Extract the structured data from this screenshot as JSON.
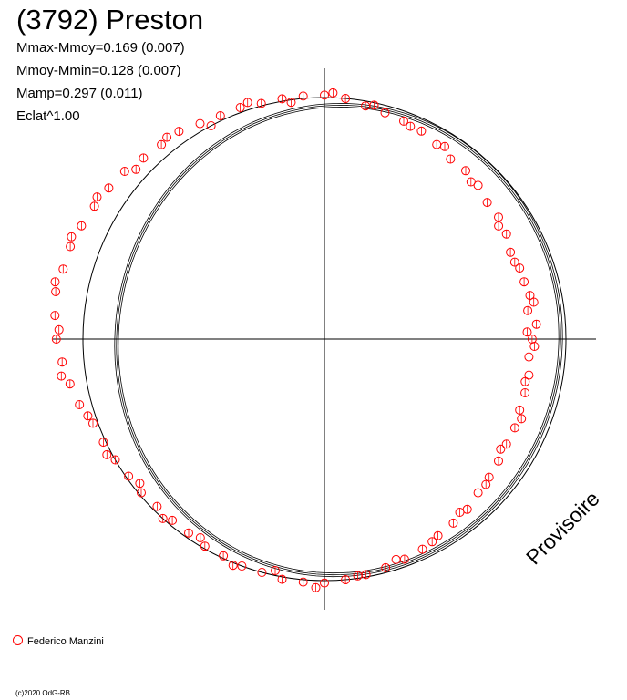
{
  "header": {
    "title": "(3792) Preston",
    "stats": [
      "Mmax-Mmoy=0.169 (0.007)",
      "Mmoy-Mmin=0.128 (0.007)",
      "Mamp=0.297 (0.011)",
      "Eclat^1.00"
    ]
  },
  "watermark": "Provisoire",
  "legend": {
    "label": "Federico Manzini",
    "marker_color": "#ff0000"
  },
  "copyright": "(c)2020 OdG-RB",
  "chart_data": {
    "type": "scatter",
    "projection": "polar",
    "theta_unit": "degrees, counter-clockwise from +x axis",
    "r_unit": "relative radius (1.0 = reference circle)",
    "reference_circle_radius": 1.0,
    "grid": false,
    "axes": "crosshair through center",
    "legend_position": "bottom-left",
    "series": [
      {
        "name": "Federico Manzini",
        "marker": "open circle",
        "color": "#ff0000",
        "points": [
          [
            0,
            0.86
          ],
          [
            4,
            0.88
          ],
          [
            8,
            0.85
          ],
          [
            12,
            0.87
          ],
          [
            16,
            0.86
          ],
          [
            20,
            0.86
          ],
          [
            25,
            0.85
          ],
          [
            30,
            0.87
          ],
          [
            35,
            0.88
          ],
          [
            40,
            0.88
          ],
          [
            45,
            0.9
          ],
          [
            50,
            0.91
          ],
          [
            55,
            0.91
          ],
          [
            60,
            0.93
          ],
          [
            65,
            0.95
          ],
          [
            70,
            0.96
          ],
          [
            75,
            0.97
          ],
          [
            80,
            0.98
          ],
          [
            85,
            1.0
          ],
          [
            90,
            1.01
          ],
          [
            95,
            1.01
          ],
          [
            100,
            1.01
          ],
          [
            105,
            1.01
          ],
          [
            110,
            1.02
          ],
          [
            115,
            1.02
          ],
          [
            120,
            1.03
          ],
          [
            125,
            1.05
          ],
          [
            130,
            1.05
          ],
          [
            135,
            1.06
          ],
          [
            140,
            1.08
          ],
          [
            145,
            1.09
          ],
          [
            150,
            1.1
          ],
          [
            155,
            1.11
          ],
          [
            160,
            1.12
          ],
          [
            165,
            1.12
          ],
          [
            170,
            1.13
          ],
          [
            175,
            1.12
          ],
          [
            180,
            1.11
          ],
          [
            185,
            1.09
          ],
          [
            190,
            1.07
          ],
          [
            195,
            1.05
          ],
          [
            200,
            1.02
          ],
          [
            205,
            1.01
          ],
          [
            210,
            1.0
          ],
          [
            215,
            0.99
          ],
          [
            220,
            0.99
          ],
          [
            225,
            0.98
          ],
          [
            230,
            0.98
          ],
          [
            235,
            0.98
          ],
          [
            240,
            0.99
          ],
          [
            245,
            0.99
          ],
          [
            250,
            1.0
          ],
          [
            255,
            1.0
          ],
          [
            260,
            1.01
          ],
          [
            265,
            1.01
          ],
          [
            270,
            1.01
          ],
          [
            275,
            1.0
          ],
          [
            280,
            0.99
          ],
          [
            285,
            0.98
          ],
          [
            290,
            0.97
          ],
          [
            295,
            0.96
          ],
          [
            300,
            0.94
          ],
          [
            305,
            0.93
          ],
          [
            310,
            0.92
          ],
          [
            315,
            0.9
          ],
          [
            320,
            0.89
          ],
          [
            325,
            0.88
          ],
          [
            330,
            0.87
          ],
          [
            335,
            0.87
          ],
          [
            340,
            0.86
          ],
          [
            345,
            0.86
          ],
          [
            350,
            0.86
          ],
          [
            355,
            0.85
          ],
          [
            2,
            0.84
          ],
          [
            10,
            0.88
          ],
          [
            22,
            0.85
          ],
          [
            33,
            0.86
          ],
          [
            47,
            0.89
          ],
          [
            58,
            0.94
          ],
          [
            68,
            0.95
          ],
          [
            78,
            0.99
          ],
          [
            88,
            1.02
          ],
          [
            98,
            0.99
          ],
          [
            108,
            1.03
          ],
          [
            118,
            1.0
          ],
          [
            128,
            1.06
          ],
          [
            138,
            1.05
          ],
          [
            148,
            1.11
          ],
          [
            158,
            1.13
          ],
          [
            168,
            1.14
          ],
          [
            178,
            1.1
          ],
          [
            188,
            1.1
          ],
          [
            198,
            1.03
          ],
          [
            208,
            1.02
          ],
          [
            218,
            0.97
          ],
          [
            228,
            1.0
          ],
          [
            238,
            0.97
          ],
          [
            248,
            1.01
          ],
          [
            258,
            0.98
          ],
          [
            268,
            1.03
          ],
          [
            278,
            0.99
          ],
          [
            288,
            0.96
          ],
          [
            298,
            0.95
          ],
          [
            308,
            0.91
          ],
          [
            318,
            0.9
          ],
          [
            328,
            0.86
          ],
          [
            338,
            0.88
          ],
          [
            348,
            0.85
          ],
          [
            358,
            0.87
          ]
        ]
      }
    ],
    "fit_curves": [
      {
        "name": "model",
        "color": "#000000",
        "a": [
          0.0,
          0.062,
          -0.027
        ],
        "b": [
          0.0,
          -0.005,
          0.008
        ]
      }
    ]
  }
}
